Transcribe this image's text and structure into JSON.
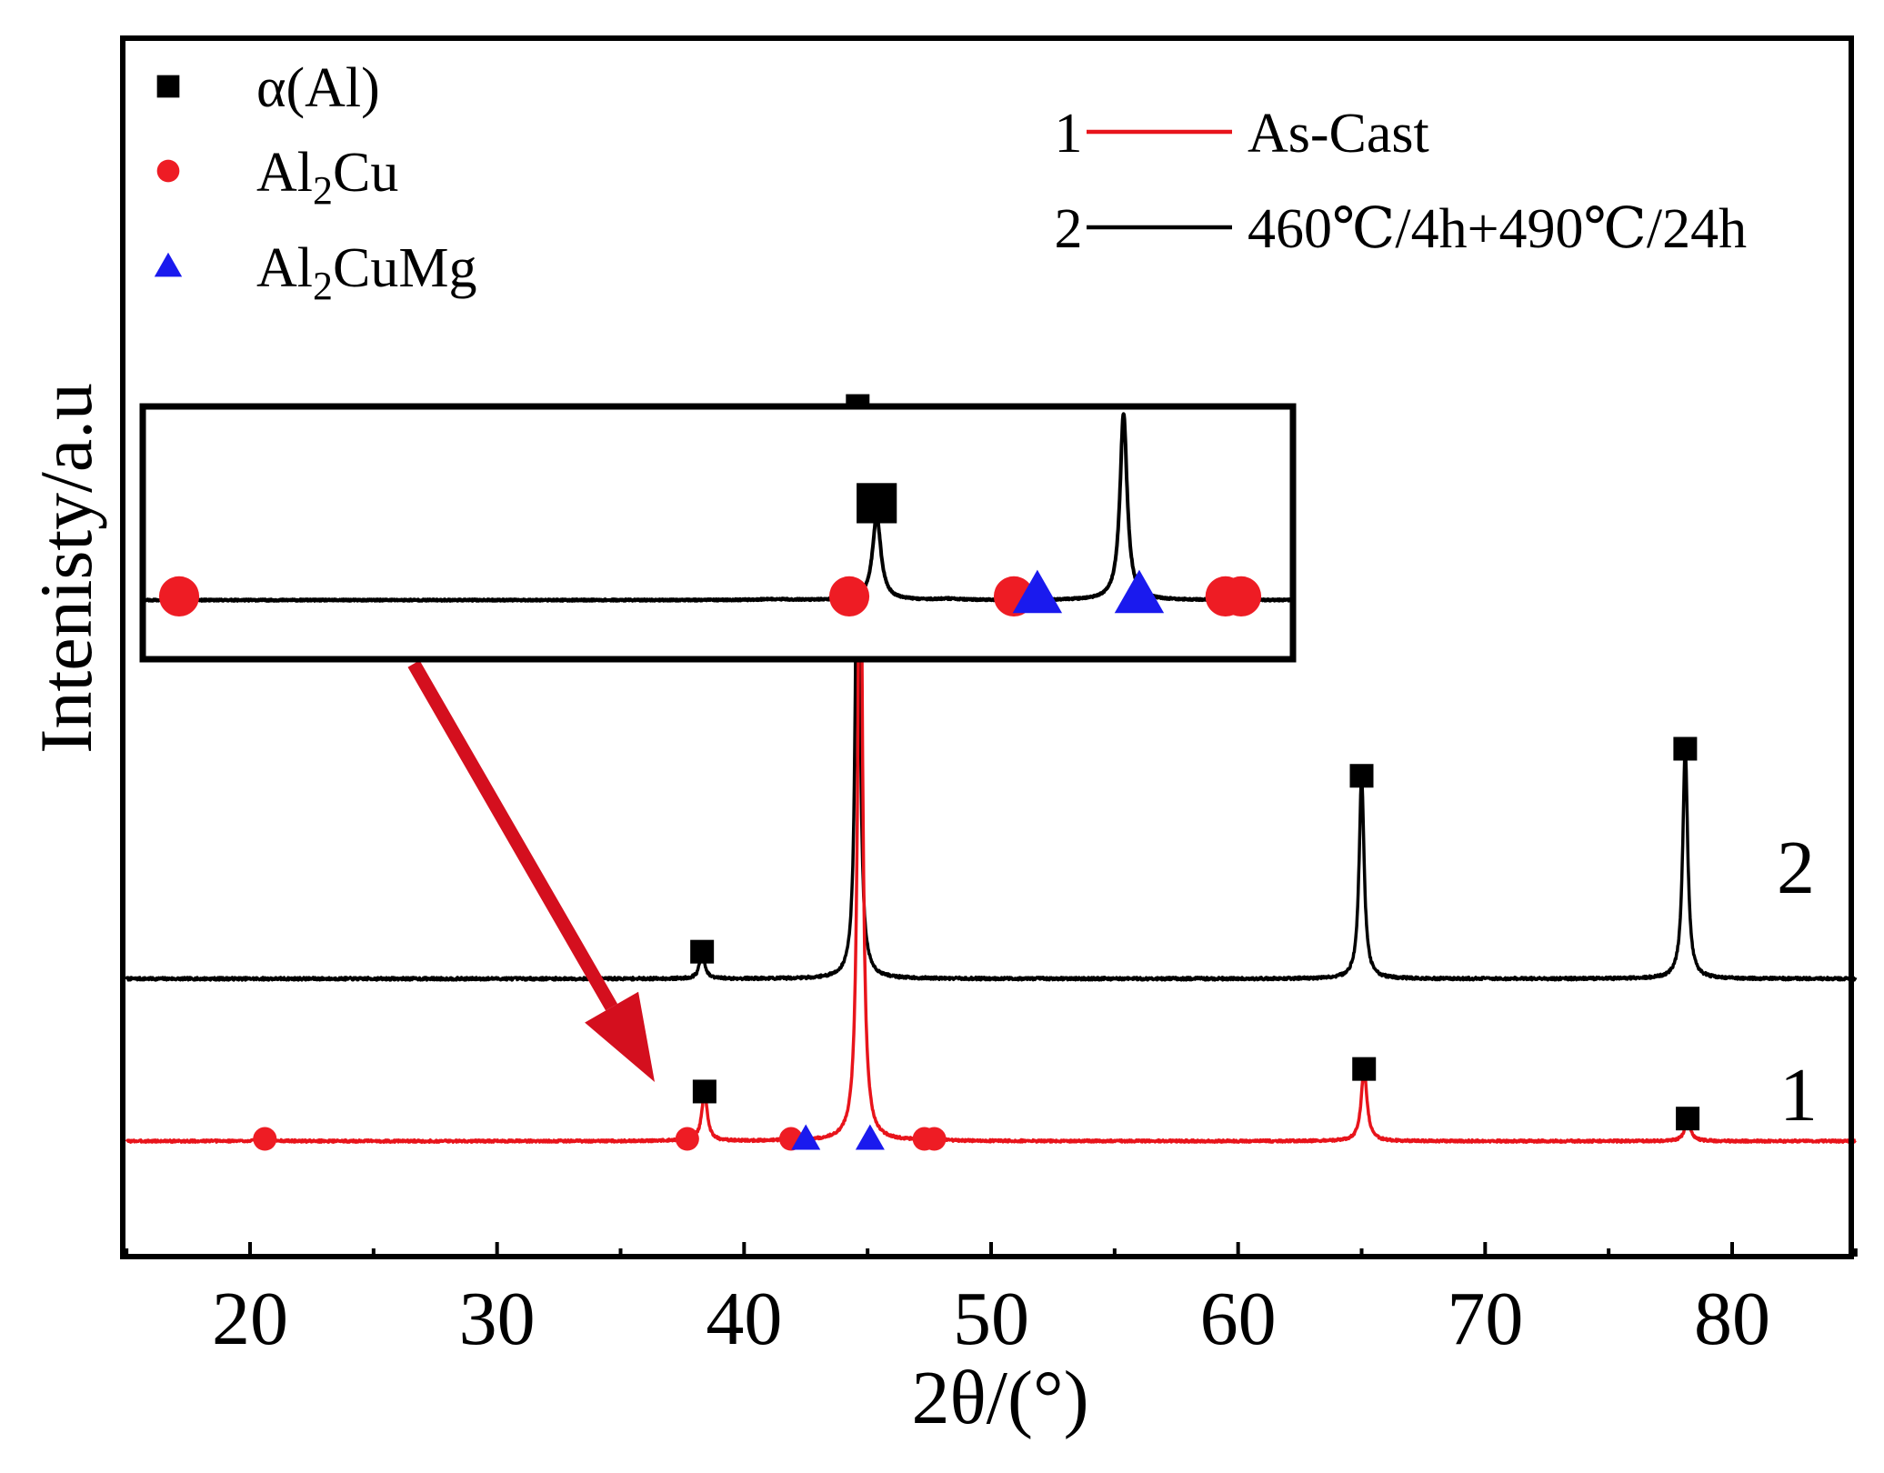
{
  "colors": {
    "as_cast": "#e8141b",
    "heat_treated": "#000000",
    "alpha_al": "#000000",
    "al2cu": "#ee1c24",
    "al2cumg": "#1a1aee",
    "arrow": "#d40f1e",
    "axis": "#000000",
    "background": "#ffffff"
  },
  "chart_data": {
    "type": "line",
    "title": "",
    "xlabel": "2θ/(°)",
    "ylabel": "Intenisty/a.u",
    "xlim": [
      15,
      85
    ],
    "ylim": [
      -0.35,
      3.6
    ],
    "xticks": [
      20,
      30,
      40,
      50,
      60,
      70,
      80
    ],
    "xtick_labels": [
      "20",
      "30",
      "40",
      "50",
      "60",
      "70",
      "80"
    ],
    "yticks_shown": false,
    "grid": false,
    "series": [
      {
        "id": "s1",
        "curve_number": "1",
        "name": "As-Cast",
        "color_key": "as_cast",
        "baseline": 0,
        "peaks": [
          {
            "x": 38.4,
            "h": 0.22,
            "w": 0.13
          },
          {
            "x": 44.7,
            "h": 3.1,
            "w": 0.11
          },
          {
            "x": 65.1,
            "h": 0.32,
            "w": 0.14
          },
          {
            "x": 78.2,
            "h": 0.1,
            "w": 0.14
          },
          {
            "x": 20.6,
            "h": 0.01,
            "w": 0.3
          },
          {
            "x": 37.7,
            "h": 0.012,
            "w": 0.3
          },
          {
            "x": 42.0,
            "h": 0.012,
            "w": 0.3
          },
          {
            "x": 47.4,
            "h": 0.015,
            "w": 0.3
          }
        ]
      },
      {
        "id": "s2",
        "curve_number": "2",
        "name": "460℃/4h+490℃/24h",
        "color_key": "heat_treated",
        "baseline": 0.72,
        "peaks": [
          {
            "x": 38.3,
            "h": 0.12,
            "w": 0.12
          },
          {
            "x": 44.6,
            "h": 2.53,
            "w": 0.1
          },
          {
            "x": 65.0,
            "h": 0.9,
            "w": 0.12
          },
          {
            "x": 78.1,
            "h": 1.02,
            "w": 0.12
          }
        ]
      }
    ],
    "phase_markers": [
      {
        "phase": "alpha_al",
        "x": 38.4,
        "y": 0.22
      },
      {
        "phase": "alpha_al",
        "x": 44.7,
        "y": 3.1
      },
      {
        "phase": "alpha_al",
        "x": 65.1,
        "y": 0.32
      },
      {
        "phase": "alpha_al",
        "x": 78.2,
        "y": 0.1
      },
      {
        "phase": "alpha_al",
        "x": 38.3,
        "y": 0.84
      },
      {
        "phase": "alpha_al",
        "x": 44.6,
        "y": 3.26
      },
      {
        "phase": "alpha_al",
        "x": 65.0,
        "y": 1.62
      },
      {
        "phase": "alpha_al",
        "x": 78.1,
        "y": 1.74
      },
      {
        "phase": "al2cu",
        "x": 20.6,
        "y": 0.01
      },
      {
        "phase": "al2cu",
        "x": 37.7,
        "y": 0.01
      },
      {
        "phase": "al2cu",
        "x": 41.9,
        "y": 0.01
      },
      {
        "phase": "al2cu",
        "x": 47.3,
        "y": 0.01
      },
      {
        "phase": "al2cu",
        "x": 47.7,
        "y": 0.01
      },
      {
        "phase": "al2cumg",
        "x": 42.5,
        "y": 0.01
      },
      {
        "phase": "al2cumg",
        "x": 45.1,
        "y": 0.01
      }
    ],
    "phase_legend": [
      {
        "phase": "alpha_al",
        "marker": "square",
        "label": "α(Al)"
      },
      {
        "phase": "al2cu",
        "marker": "circle",
        "label_main": "Al",
        "label_sub": "2",
        "label_rest": "Cu"
      },
      {
        "phase": "al2cumg",
        "marker": "triangle",
        "label_main": "Al",
        "label_sub": "2",
        "label_rest": "CuMg"
      }
    ],
    "curve_legend": [
      {
        "number": "1",
        "label": "As-Cast",
        "color_key": "as_cast"
      },
      {
        "number": "2",
        "label": "460℃/4h+490℃/24h",
        "color_key": "heat_treated"
      }
    ],
    "curve_number_labels": [
      {
        "text": "2",
        "near": "heat-treated curve, right end"
      },
      {
        "text": "1",
        "near": "as-cast curve, right end"
      }
    ],
    "inset": {
      "description": "magnified baseline of curve 1 between about 20° and 48° (2θ)",
      "source_xlim": [
        20,
        48
      ],
      "peaks": [
        {
          "x": 38.4,
          "h": 0.45,
          "w": 0.13
        },
        {
          "x": 44.7,
          "h": 1.0,
          "w": 0.11
        },
        {
          "x": 40.2,
          "h": 0.006,
          "w": 0.3
        },
        {
          "x": 35.8,
          "h": 0.004,
          "w": 0.5
        }
      ],
      "markers": [
        {
          "phase": "al2cu",
          "x": 20.6,
          "y": 0.02
        },
        {
          "phase": "al2cu",
          "x": 37.7,
          "y": 0.02
        },
        {
          "phase": "alpha_al",
          "x": 38.4,
          "y": 0.52
        },
        {
          "phase": "al2cu",
          "x": 41.9,
          "y": 0.02
        },
        {
          "phase": "al2cumg",
          "x": 42.5,
          "y": 0.03
        },
        {
          "phase": "al2cumg",
          "x": 45.1,
          "y": 0.03
        },
        {
          "phase": "al2cu",
          "x": 47.3,
          "y": 0.02
        },
        {
          "phase": "al2cu",
          "x": 47.7,
          "y": 0.02
        }
      ]
    }
  }
}
